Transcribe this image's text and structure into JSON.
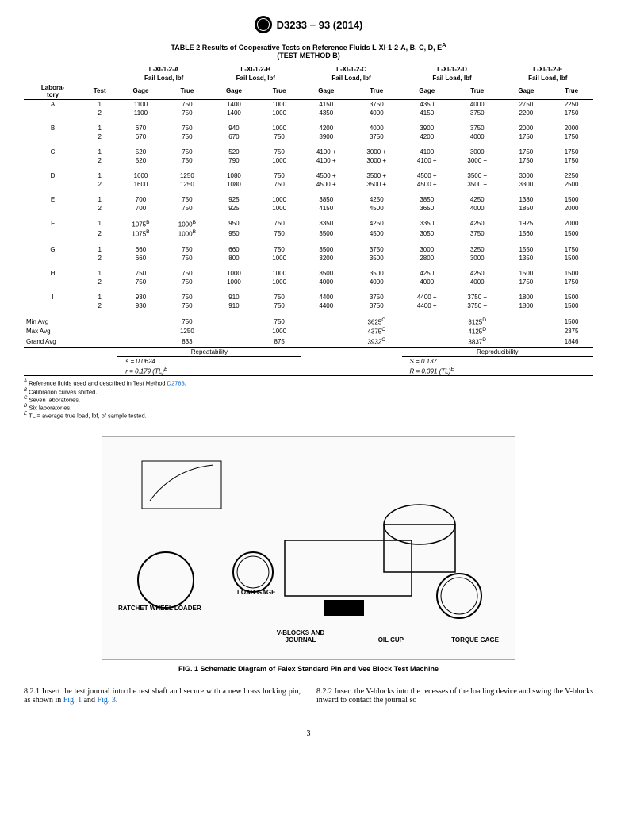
{
  "header": {
    "doc_number": "D3233 − 93 (2014)"
  },
  "table": {
    "title_line1": "TABLE 2 Results of Cooperative Tests on Reference Fluids L-XI-1-2-A, B, C, D, E",
    "title_sup": "A",
    "title_line2": "(TEST METHOD B)",
    "lab_header1": "Labora-",
    "lab_header2": "tory",
    "test_header": "Test",
    "fluids": [
      "L-XI-1-2-A",
      "L-XI-1-2-B",
      "L-XI-1-2-C",
      "L-XI-1-2-D",
      "L-XI-1-2-E"
    ],
    "fail_load": "Fail Load, lbf",
    "gage": "Gage",
    "true": "True",
    "rows": [
      {
        "lab": "A",
        "test": "1",
        "v": [
          "1100",
          "750",
          "1400",
          "1000",
          "4150",
          "3750",
          "4350",
          "4000",
          "2750",
          "2250"
        ]
      },
      {
        "lab": "",
        "test": "2",
        "v": [
          "1100",
          "750",
          "1400",
          "1000",
          "4350",
          "4000",
          "4150",
          "3750",
          "2200",
          "1750"
        ]
      },
      {
        "lab": "B",
        "test": "1",
        "v": [
          "670",
          "750",
          "940",
          "1000",
          "4200",
          "4000",
          "3900",
          "3750",
          "2000",
          "2000"
        ],
        "gap": true
      },
      {
        "lab": "",
        "test": "2",
        "v": [
          "670",
          "750",
          "670",
          "750",
          "3900",
          "3750",
          "4200",
          "4000",
          "1750",
          "1750"
        ]
      },
      {
        "lab": "C",
        "test": "1",
        "v": [
          "520",
          "750",
          "520",
          "750",
          "4100 +",
          "3000 +",
          "4100",
          "3000",
          "1750",
          "1750"
        ],
        "gap": true
      },
      {
        "lab": "",
        "test": "2",
        "v": [
          "520",
          "750",
          "790",
          "1000",
          "4100 +",
          "3000 +",
          "4100 +",
          "3000 +",
          "1750",
          "1750"
        ]
      },
      {
        "lab": "D",
        "test": "1",
        "v": [
          "1600",
          "1250",
          "1080",
          "750",
          "4500 +",
          "3500 +",
          "4500 +",
          "3500 +",
          "3000",
          "2250"
        ],
        "gap": true
      },
      {
        "lab": "",
        "test": "2",
        "v": [
          "1600",
          "1250",
          "1080",
          "750",
          "4500 +",
          "3500 +",
          "4500 +",
          "3500 +",
          "3300",
          "2500"
        ]
      },
      {
        "lab": "E",
        "test": "1",
        "v": [
          "700",
          "750",
          "925",
          "1000",
          "3850",
          "4250",
          "3850",
          "4250",
          "1380",
          "1500"
        ],
        "gap": true
      },
      {
        "lab": "",
        "test": "2",
        "v": [
          "700",
          "750",
          "925",
          "1000",
          "4150",
          "4500",
          "3650",
          "4000",
          "1850",
          "2000"
        ]
      },
      {
        "lab": "F",
        "test": "1",
        "v": [
          "1075<sup>B</sup>",
          "1000<sup>B</sup>",
          "950",
          "750",
          "3350",
          "4250",
          "3350",
          "4250",
          "1925",
          "2000"
        ],
        "gap": true
      },
      {
        "lab": "",
        "test": "2",
        "v": [
          "1075<sup>B</sup>",
          "1000<sup>B</sup>",
          "950",
          "750",
          "3500",
          "4500",
          "3050",
          "3750",
          "1560",
          "1500"
        ]
      },
      {
        "lab": "G",
        "test": "1",
        "v": [
          "660",
          "750",
          "660",
          "750",
          "3500",
          "3750",
          "3000",
          "3250",
          "1550",
          "1750"
        ],
        "gap": true
      },
      {
        "lab": "",
        "test": "2",
        "v": [
          "660",
          "750",
          "800",
          "1000",
          "3200",
          "3500",
          "2800",
          "3000",
          "1350",
          "1500"
        ]
      },
      {
        "lab": "H",
        "test": "1",
        "v": [
          "750",
          "750",
          "1000",
          "1000",
          "3500",
          "3500",
          "4250",
          "4250",
          "1500",
          "1500"
        ],
        "gap": true
      },
      {
        "lab": "",
        "test": "2",
        "v": [
          "750",
          "750",
          "1000",
          "1000",
          "4000",
          "4000",
          "4000",
          "4000",
          "1750",
          "1750"
        ]
      },
      {
        "lab": "I",
        "test": "1",
        "v": [
          "930",
          "750",
          "910",
          "750",
          "4400",
          "3750",
          "4400 +",
          "3750 +",
          "1800",
          "1500"
        ],
        "gap": true
      },
      {
        "lab": "",
        "test": "2",
        "v": [
          "930",
          "750",
          "910",
          "750",
          "4400",
          "3750",
          "4400 +",
          "3750 +",
          "1800",
          "1500"
        ]
      }
    ],
    "summary": [
      {
        "label": "Min Avg",
        "v": [
          "",
          "750",
          "",
          "750",
          "",
          "3625<sup>C</sup>",
          "",
          "3125<sup>D</sup>",
          "",
          "1500"
        ]
      },
      {
        "label": "Max Avg",
        "v": [
          "",
          "1250",
          "",
          "1000",
          "",
          "4375<sup>C</sup>",
          "",
          "4125<sup>D</sup>",
          "",
          "2375"
        ]
      },
      {
        "label": "Grand Avg",
        "v": [
          "",
          "833",
          "",
          "875",
          "",
          "3932<sup>C</sup>",
          "",
          "3837<sup>D</sup>",
          "",
          "1846"
        ]
      }
    ],
    "repeat_label": "Repeatability",
    "reprod_label": "Reproducibility",
    "s_eq": "s = 0.0624",
    "r_eq": "r  = 0.179 (TL)",
    "S_eq": "S  = 0.137",
    "R_eq": "R = 0.391 (TL)",
    "E_sup": "E"
  },
  "footnotes": {
    "A": "Reference fluids used and described in Test Method ",
    "A_link": "D2783",
    "A_end": ".",
    "B": "Calibration curves shifted.",
    "C": "Seven laboratories.",
    "D": "Six laboratories.",
    "E": "TL = average true load, lbf, of sample tested."
  },
  "figure": {
    "caption": "FIG. 1  Schematic Diagram of Falex Standard Pin and Vee Block Test Machine",
    "labels": {
      "ratchet": "RATCHET WHEEL LOADER",
      "loadgage": "LOAD GAGE",
      "vblocks": "V-BLOCKS AND JOURNAL",
      "oilcup": "OIL CUP",
      "torque": "TORQUE GAGE"
    }
  },
  "body": {
    "p1": "8.2.1 Insert the test journal into the test shaft and secure with a new brass locking pin, as shown in ",
    "fig1": "Fig. 1",
    "mid": " and ",
    "fig3": "Fig. 3",
    "p1_end": ".",
    "p2": "8.2.2 Insert the V-blocks into the recesses of the loading device and swing the V-blocks inward to contact the journal so"
  },
  "page": "3"
}
